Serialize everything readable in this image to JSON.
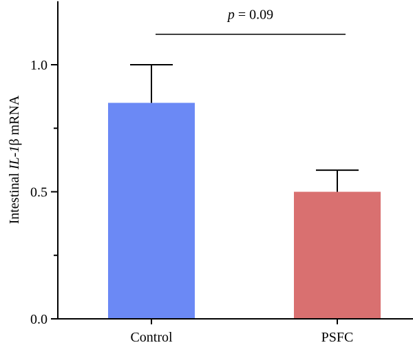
{
  "chart_data": {
    "type": "bar",
    "categories": [
      "Control",
      "PSFC"
    ],
    "values": [
      0.85,
      0.5
    ],
    "errors": [
      0.15,
      0.085
    ],
    "bar_colors": [
      "#6b89f5",
      "#d97070"
    ],
    "ylabel_parts": {
      "pre": "Intestinal ",
      "italic": "IL-1",
      "post": "β mRNA"
    },
    "ylim": [
      0,
      1.25
    ],
    "yticks": [
      0.0,
      0.5,
      1.0
    ],
    "ytick_labels": [
      "0.0",
      "0.5",
      "1.0"
    ],
    "minor_yticks": [
      0.25,
      0.75
    ],
    "significance": {
      "p_italic": "p",
      "p_rest": " = 0.09",
      "y": 1.12
    }
  }
}
